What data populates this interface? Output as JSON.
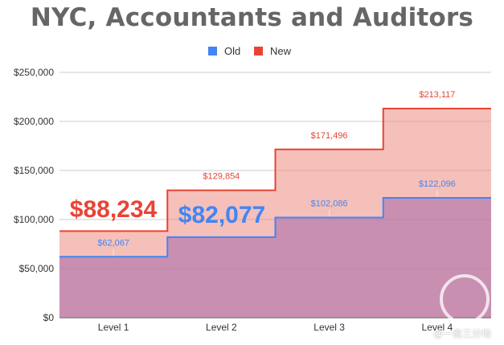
{
  "title": "NYC, Accountants and Auditors",
  "legend": [
    {
      "name": "Old",
      "color": "#4285f4"
    },
    {
      "name": "New",
      "color": "#ea4335"
    }
  ],
  "callouts": {
    "old": "$82,077",
    "new": "$88,234"
  },
  "watermark": "@一亩三分地",
  "chart_data": {
    "type": "area",
    "title": "NYC, Accountants and Auditors",
    "categories": [
      "Level 1",
      "Level 2",
      "Level 3",
      "Level 4"
    ],
    "series": [
      {
        "name": "Old",
        "color": "#4285f4",
        "values": [
          62067,
          82077,
          102086,
          122096
        ],
        "labels": [
          "$62,067",
          "$82,077",
          "$102,086",
          "$122,096"
        ]
      },
      {
        "name": "New",
        "color": "#ea4335",
        "values": [
          88234,
          129854,
          171496,
          213117
        ],
        "labels": [
          "$88,234",
          "$129,854",
          "$171,496",
          "$213,117"
        ]
      }
    ],
    "y_ticks": [
      "$0",
      "$50,000",
      "$100,000",
      "$150,000",
      "$200,000",
      "$250,000"
    ],
    "ylim": [
      0,
      250000
    ],
    "step": true,
    "grid": true,
    "legend_position": "top"
  }
}
